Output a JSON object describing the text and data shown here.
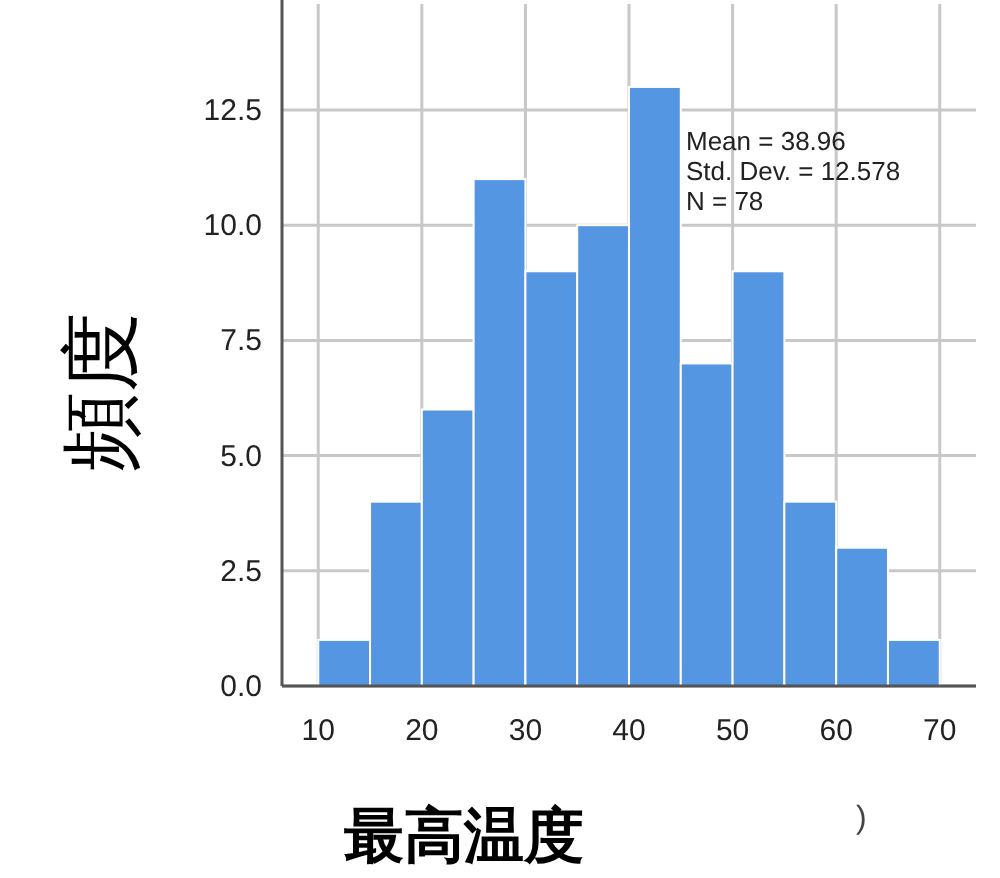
{
  "chart_data": {
    "type": "histogram",
    "bins": [
      10,
      15,
      20,
      25,
      30,
      35,
      40,
      45,
      50,
      55,
      60,
      65,
      70
    ],
    "values": [
      1,
      4,
      6,
      11,
      9,
      10,
      13,
      7,
      9,
      4,
      3,
      1
    ],
    "color": "#5596e3",
    "xlabel": "最高温度",
    "ylabel": "頻度",
    "xlim": [
      6.5,
      73.5
    ],
    "ylim": [
      0,
      14.8
    ],
    "xticks": [
      10,
      20,
      30,
      40,
      50,
      60,
      70
    ],
    "yticks": [
      {
        "value": 0,
        "label": "0.0"
      },
      {
        "value": 2.5,
        "label": "2.5"
      },
      {
        "value": 5,
        "label": "5.0"
      },
      {
        "value": 7.5,
        "label": "7.5"
      },
      {
        "value": 10,
        "label": "10.0"
      },
      {
        "value": 12.5,
        "label": "12.5"
      }
    ],
    "grid": true,
    "annotations": [
      "Mean = 38.96",
      "Std. Dev. = 12.578",
      "N = 78",
      ")"
    ]
  }
}
